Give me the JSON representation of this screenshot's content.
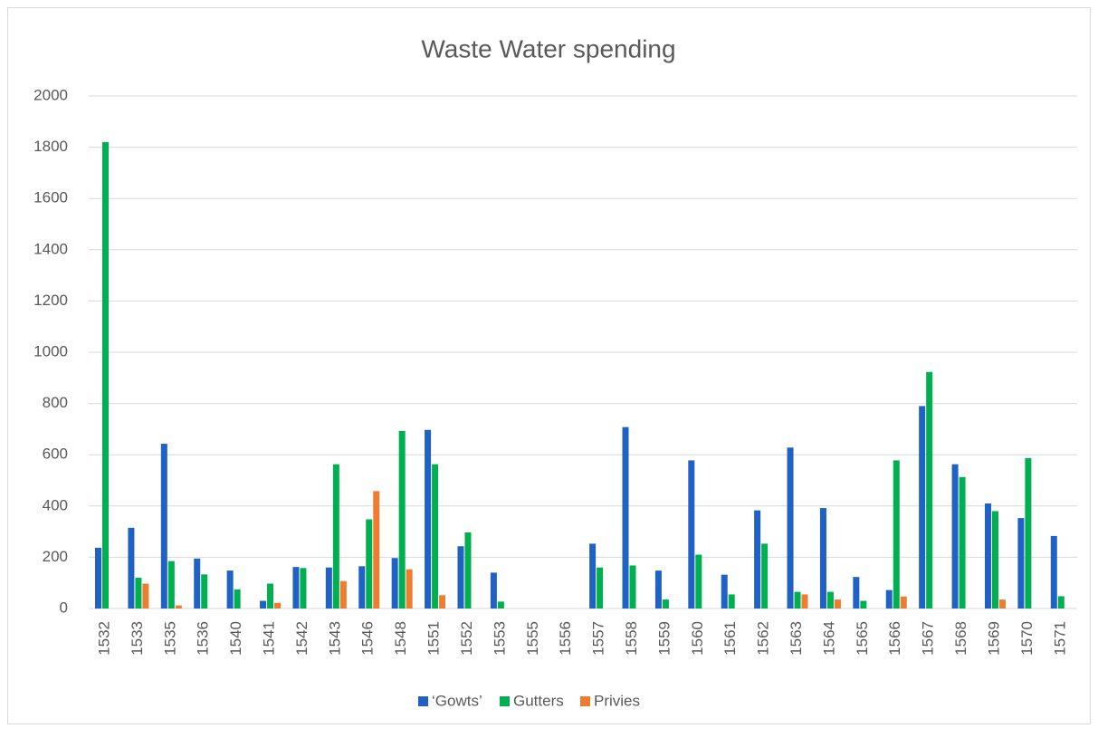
{
  "chart_data": {
    "type": "bar",
    "title": "Waste Water spending",
    "categories": [
      "1532",
      "1533",
      "1535",
      "1536",
      "1540",
      "1541",
      "1542",
      "1543",
      "1546",
      "1548",
      "1551",
      "1552",
      "1553",
      "1555",
      "1556",
      "1557",
      "1558",
      "1559",
      "1560",
      "1561",
      "1562",
      "1563",
      "1564",
      "1565",
      "1566",
      "1567",
      "1568",
      "1569",
      "1570",
      "1571"
    ],
    "series": [
      {
        "name": "‘Gowts’",
        "color": "#1f62c4",
        "values": [
          237,
          315,
          643,
          195,
          148,
          30,
          162,
          160,
          165,
          197,
          697,
          243,
          140,
          null,
          null,
          253,
          708,
          148,
          578,
          132,
          383,
          628,
          392,
          123,
          72,
          790,
          563,
          410,
          353,
          283
        ]
      },
      {
        "name": "Gutters",
        "color": "#00b050",
        "values": [
          1820,
          120,
          185,
          133,
          75,
          97,
          158,
          563,
          348,
          693,
          563,
          297,
          27,
          null,
          null,
          160,
          168,
          35,
          210,
          55,
          253,
          65,
          65,
          30,
          578,
          923,
          513,
          380,
          587,
          48
        ]
      },
      {
        "name": "Privies",
        "color": "#ed7d31",
        "values": [
          null,
          97,
          12,
          null,
          null,
          22,
          null,
          107,
          458,
          153,
          52,
          null,
          null,
          null,
          null,
          null,
          null,
          null,
          null,
          null,
          null,
          55,
          35,
          null,
          47,
          null,
          null,
          35,
          null,
          null
        ]
      }
    ],
    "ylim": [
      0,
      2000
    ],
    "yticks": [
      0,
      200,
      400,
      600,
      800,
      1000,
      1200,
      1400,
      1600,
      1800,
      2000
    ],
    "grid": true,
    "legend": "bottom"
  }
}
